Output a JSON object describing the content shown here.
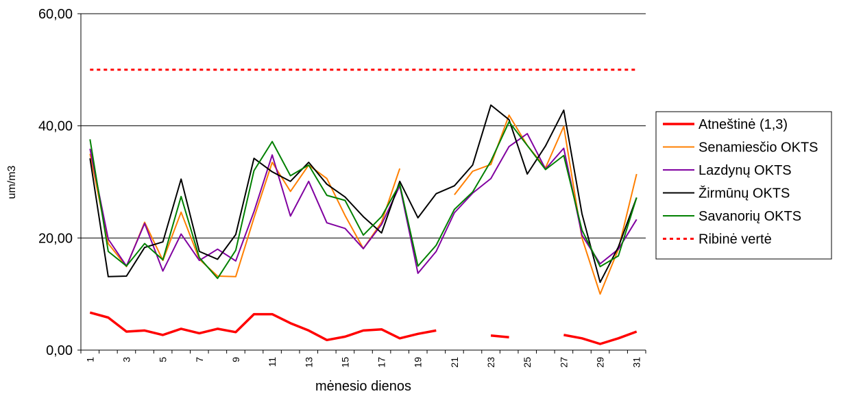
{
  "chart_data": {
    "type": "line",
    "xlabel": "mėnesio dienos",
    "ylabel": "um/m3",
    "ylim": [
      0,
      60
    ],
    "y_ticks": [
      "0,00",
      "20,00",
      "40,00",
      "60,00"
    ],
    "y_tick_values": [
      0,
      20,
      40,
      60
    ],
    "x": [
      1,
      2,
      3,
      4,
      5,
      6,
      7,
      8,
      9,
      10,
      11,
      12,
      13,
      14,
      15,
      16,
      17,
      18,
      19,
      20,
      21,
      22,
      23,
      24,
      25,
      26,
      27,
      28,
      29,
      30,
      31
    ],
    "x_tick_labels": [
      "1",
      "3",
      "5",
      "7",
      "9",
      "11",
      "13",
      "15",
      "17",
      "19",
      "21",
      "23",
      "25",
      "27",
      "29",
      "31"
    ],
    "x_tick_values": [
      1,
      3,
      5,
      7,
      9,
      11,
      13,
      15,
      17,
      19,
      21,
      23,
      25,
      27,
      29,
      31
    ],
    "grid": "horizontal",
    "legend_position": "right",
    "series": [
      {
        "name": "Atneštinė (1,3)",
        "color": "#ff0000",
        "style": "solid-thick",
        "values": [
          6.7,
          5.8,
          3.3,
          3.5,
          2.7,
          3.8,
          3.0,
          3.8,
          3.2,
          6.4,
          6.4,
          4.8,
          3.5,
          1.8,
          2.4,
          3.5,
          3.7,
          2.1,
          2.9,
          3.5,
          null,
          null,
          2.6,
          2.3,
          null,
          null,
          2.7,
          2.1,
          1.1,
          2.1,
          3.3
        ]
      },
      {
        "name": "Senamiesčio OKTS",
        "color": "#ff7f00",
        "style": "solid",
        "values": [
          35.0,
          19.0,
          14.9,
          22.8,
          16.0,
          24.6,
          16.2,
          13.2,
          13.1,
          23.6,
          33.5,
          28.3,
          33.0,
          30.6,
          24.0,
          18.1,
          22.8,
          32.4,
          null,
          null,
          27.7,
          31.9,
          33.1,
          41.9,
          36.5,
          32.5,
          39.9,
          20.0,
          10.0,
          18.0,
          31.4
        ]
      },
      {
        "name": "Lazdynų OKTS",
        "color": "#8000a0",
        "style": "solid",
        "values": [
          35.9,
          19.8,
          15.0,
          22.6,
          14.1,
          20.7,
          16.0,
          18.0,
          15.9,
          24.7,
          34.8,
          23.9,
          30.1,
          22.7,
          21.7,
          18.1,
          22.4,
          29.3,
          13.7,
          17.6,
          24.5,
          28.0,
          30.6,
          36.3,
          38.6,
          32.3,
          36.0,
          20.5,
          15.4,
          18.0,
          23.3
        ]
      },
      {
        "name": "Žirmūnų OKTS",
        "color": "#000000",
        "style": "solid",
        "values": [
          34.2,
          13.1,
          13.2,
          18.3,
          19.3,
          30.5,
          17.6,
          16.2,
          20.6,
          34.2,
          31.8,
          30.1,
          33.5,
          29.6,
          27.3,
          23.8,
          20.9,
          30.1,
          23.6,
          27.9,
          29.3,
          33.0,
          43.7,
          41.1,
          31.4,
          36.4,
          42.8,
          24.3,
          12.1,
          18.4,
          27.2
        ]
      },
      {
        "name": "Savanorių OKTS",
        "color": "#008000",
        "style": "solid",
        "values": [
          37.6,
          17.6,
          15.0,
          19.0,
          16.1,
          27.4,
          16.5,
          12.8,
          17.8,
          32.0,
          37.2,
          31.1,
          33.0,
          27.6,
          26.7,
          20.5,
          23.8,
          29.6,
          15.0,
          18.7,
          25.1,
          28.2,
          33.7,
          40.7,
          36.5,
          32.2,
          34.7,
          21.4,
          14.9,
          16.8,
          27.2
        ]
      },
      {
        "name": "Ribinė vertė",
        "color": "#ff0000",
        "style": "dotted",
        "values": [
          50,
          50,
          50,
          50,
          50,
          50,
          50,
          50,
          50,
          50,
          50,
          50,
          50,
          50,
          50,
          50,
          50,
          50,
          50,
          50,
          50,
          50,
          50,
          50,
          50,
          50,
          50,
          50,
          50,
          50,
          50
        ]
      }
    ]
  }
}
